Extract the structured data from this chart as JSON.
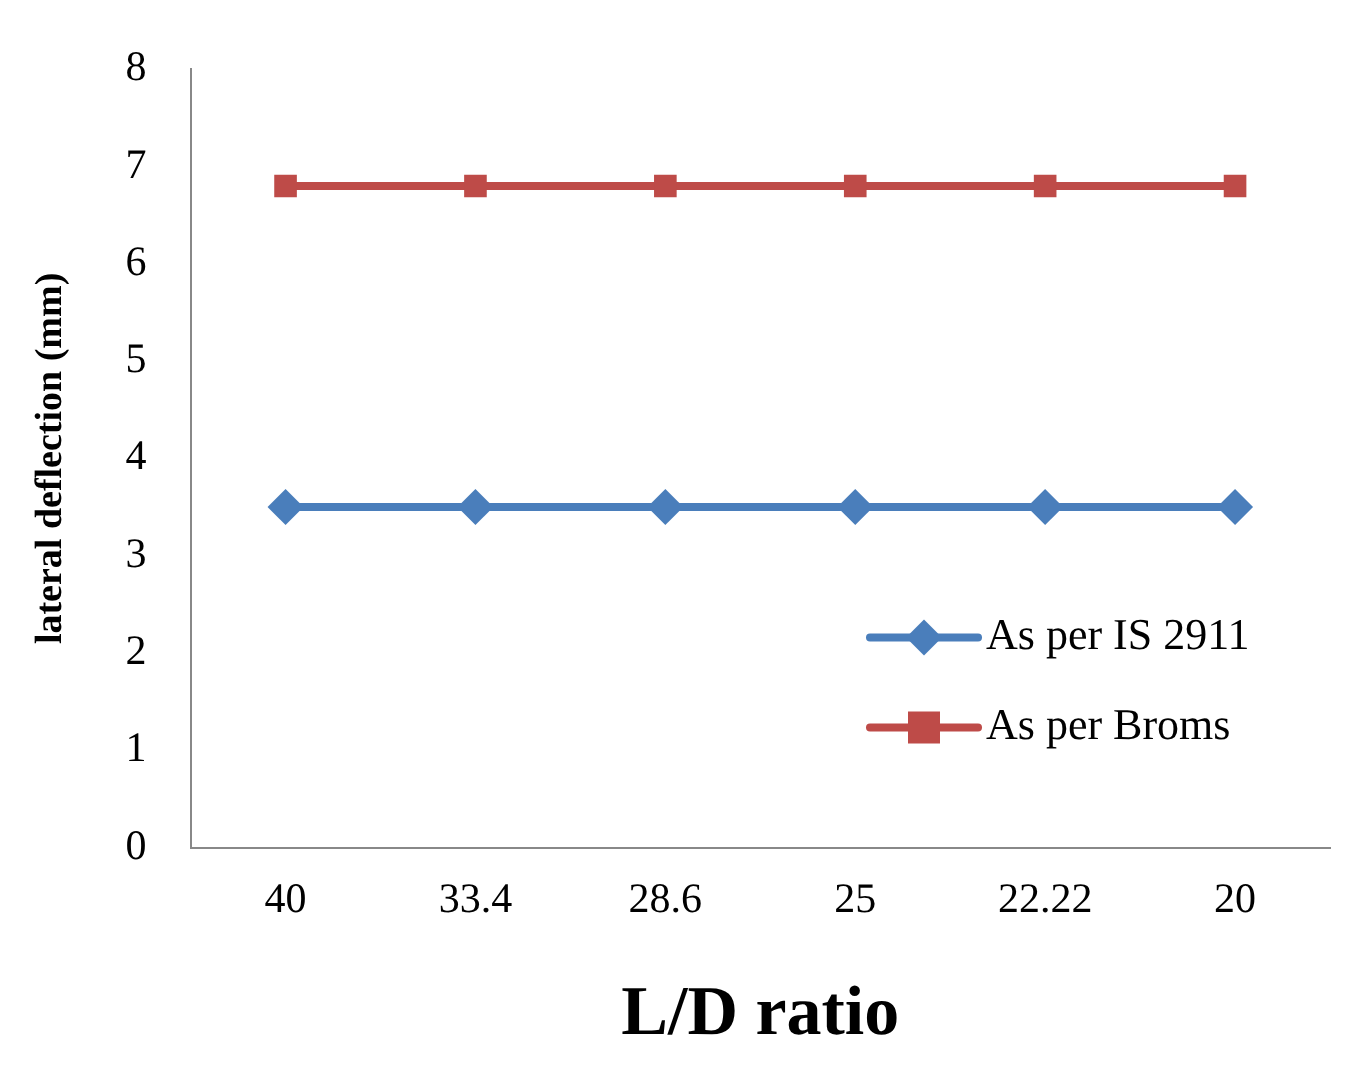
{
  "chart_data": {
    "type": "line",
    "xlabel": "L/D ratio",
    "ylabel": "lateral deflection (mm)",
    "categories": [
      "40",
      "33.4",
      "28.6",
      "25",
      "22.22",
      "20"
    ],
    "series": [
      {
        "name": "As per IS 2911",
        "color": "#4a7ebb",
        "marker": "diamond",
        "values": [
          3.5,
          3.5,
          3.5,
          3.5,
          3.5,
          3.5
        ]
      },
      {
        "name": "As per Broms",
        "color": "#be4b48",
        "marker": "square",
        "values": [
          6.8,
          6.8,
          6.8,
          6.8,
          6.8,
          6.8
        ]
      }
    ],
    "ylim": [
      0,
      8
    ],
    "yticks": [
      0,
      1,
      2,
      3,
      4,
      5,
      6,
      7,
      8
    ],
    "grid": false,
    "legend": "right"
  }
}
